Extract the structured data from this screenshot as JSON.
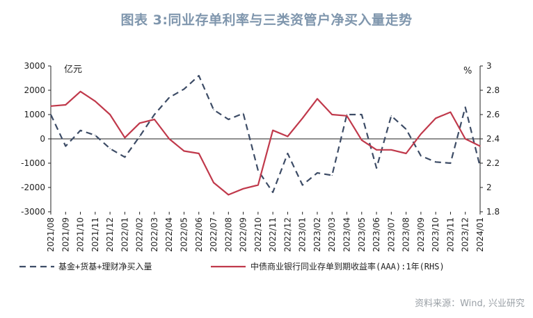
{
  "title": "图表 3:同业存单利率与三类资管户净买入量走势",
  "source": "资料来源：Wind, 兴业研究",
  "chart_data": {
    "type": "line",
    "categories": [
      "2021/08",
      "2021/09",
      "2021/10",
      "2021/11",
      "2021/12",
      "2022/01",
      "2022/02",
      "2022/03",
      "2022/04",
      "2022/05",
      "2022/06",
      "2022/07",
      "2022/08",
      "2022/09",
      "2022/10",
      "2022/11",
      "2022/12",
      "2023/01",
      "2023/02",
      "2023/03",
      "2023/04",
      "2023/05",
      "2023/06",
      "2023/07",
      "2023/08",
      "2023/09",
      "2023/10",
      "2023/11",
      "2023/12",
      "2024/01"
    ],
    "left_axis": {
      "unit": "亿元",
      "ylim": [
        -3000,
        3000
      ],
      "ticks": [
        3000,
        2000,
        1000,
        0,
        -1000,
        -2000,
        -3000
      ]
    },
    "right_axis": {
      "unit": "%",
      "ylim": [
        1.8,
        3.0
      ],
      "ticks": [
        "3",
        "2.8",
        "2.6",
        "2.4",
        "2.2",
        "2",
        "1.8"
      ]
    },
    "series": [
      {
        "name": "基金+货基+理财净买入量",
        "axis": "left",
        "style": "dashed",
        "color": "#3d4c66",
        "values": [
          1000,
          -300,
          350,
          150,
          -400,
          -750,
          100,
          1000,
          1700,
          2050,
          2600,
          1200,
          800,
          1050,
          -1300,
          -2200,
          -600,
          -1900,
          -1400,
          -1500,
          1000,
          1000,
          -1200,
          950,
          400,
          -700,
          -950,
          -1000,
          1300,
          -1150
        ]
      },
      {
        "name": "中债商业银行同业存单到期收益率(AAA):1年(RHS)",
        "axis": "right",
        "style": "solid",
        "color": "#c0394b",
        "values": [
          2.67,
          2.68,
          2.79,
          2.71,
          2.6,
          2.41,
          2.53,
          2.56,
          2.4,
          2.3,
          2.28,
          2.04,
          1.94,
          1.99,
          2.02,
          2.47,
          2.42,
          2.57,
          2.73,
          2.6,
          2.59,
          2.39,
          2.31,
          2.31,
          2.28,
          2.44,
          2.57,
          2.62,
          2.4,
          2.34
        ]
      }
    ]
  }
}
